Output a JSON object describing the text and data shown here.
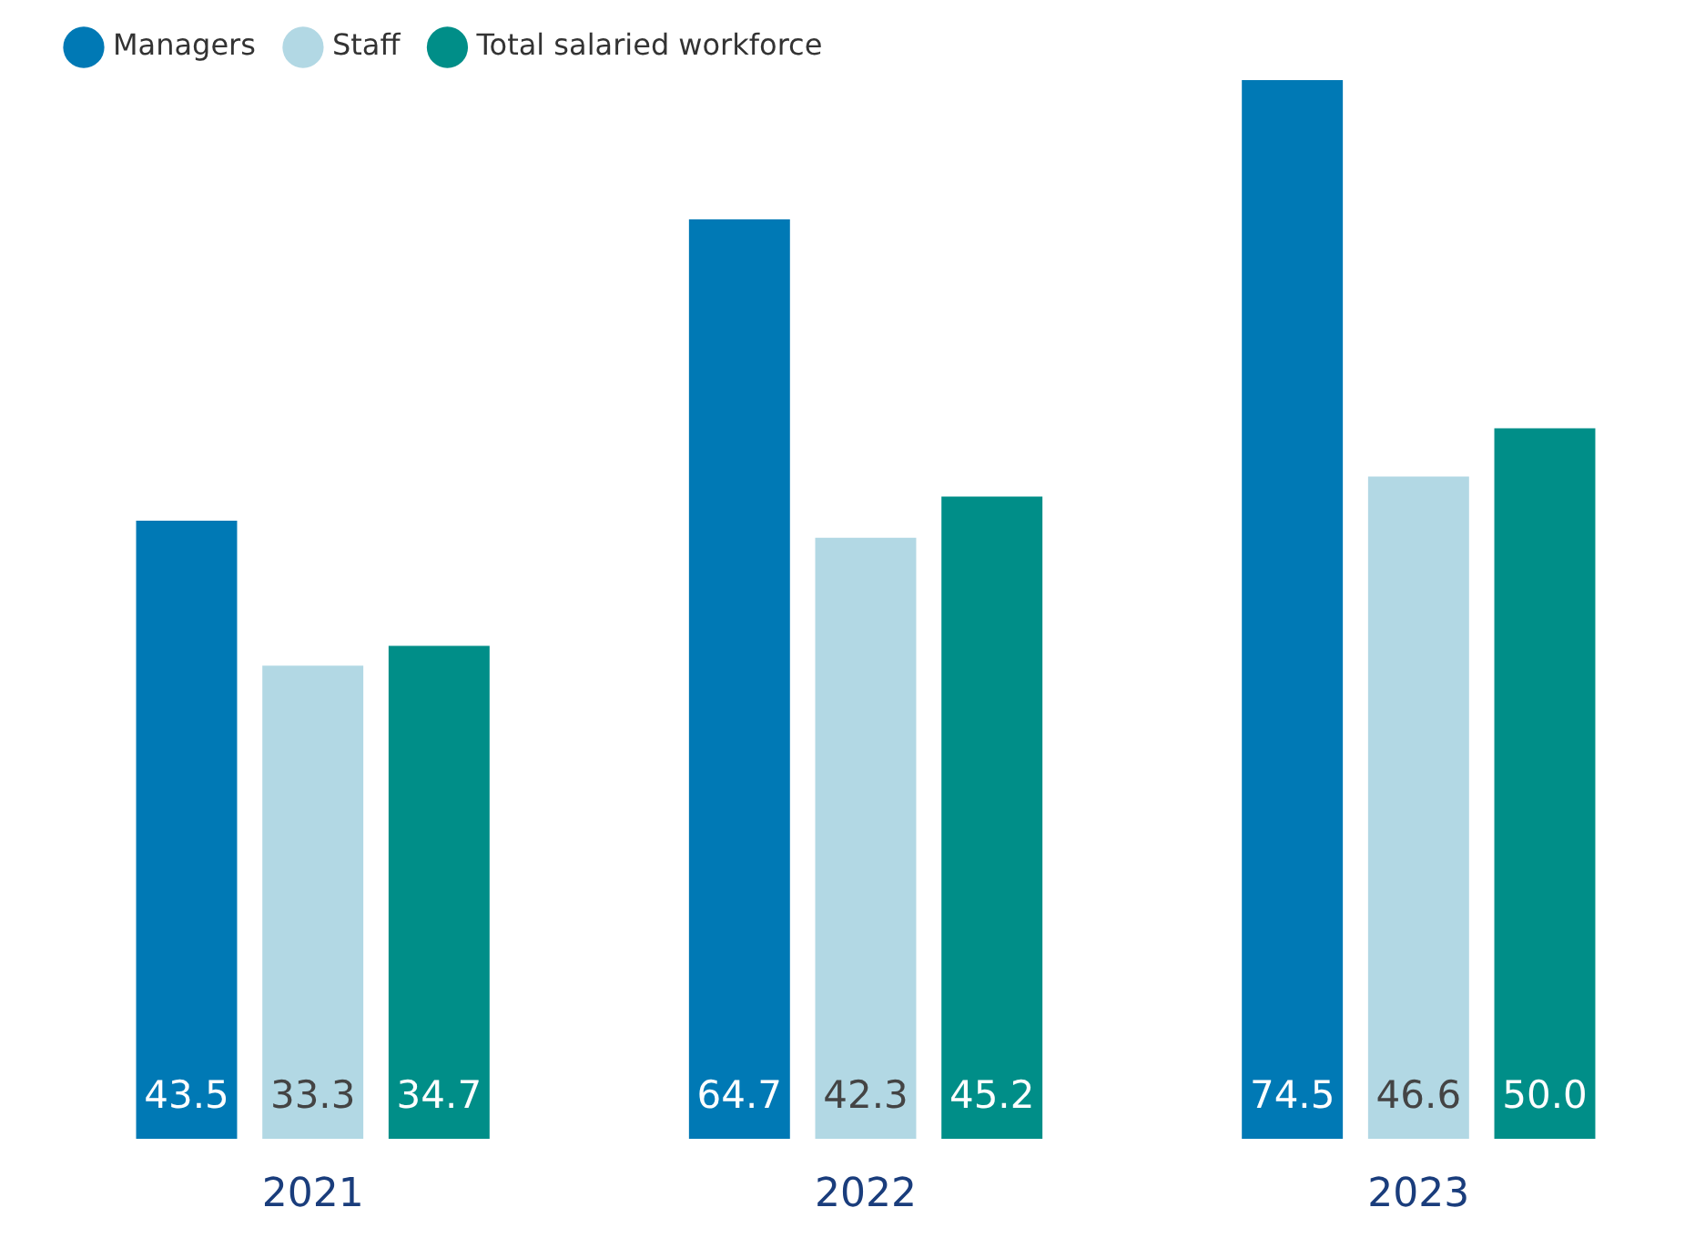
{
  "chart_data": {
    "type": "bar",
    "categories": [
      "2021",
      "2022",
      "2023"
    ],
    "series": [
      {
        "name": "Managers",
        "color": "#0079b5",
        "values": [
          43.5,
          64.7,
          74.5
        ],
        "value_labels": [
          "43.5",
          "64.7",
          "74.5"
        ]
      },
      {
        "name": "Staff",
        "color": "#b2d8e4",
        "values": [
          33.3,
          42.3,
          46.6
        ],
        "value_labels": [
          "33.3",
          "42.3",
          "46.6"
        ]
      },
      {
        "name": "Total salaried workforce",
        "color": "#008e88",
        "values": [
          34.7,
          45.2,
          50.0
        ],
        "value_labels": [
          "34.7",
          "45.2",
          "50.0"
        ]
      }
    ],
    "ylim": [
      0,
      74.5
    ],
    "legend": "top left",
    "grid": false,
    "tick_labels": "x"
  }
}
